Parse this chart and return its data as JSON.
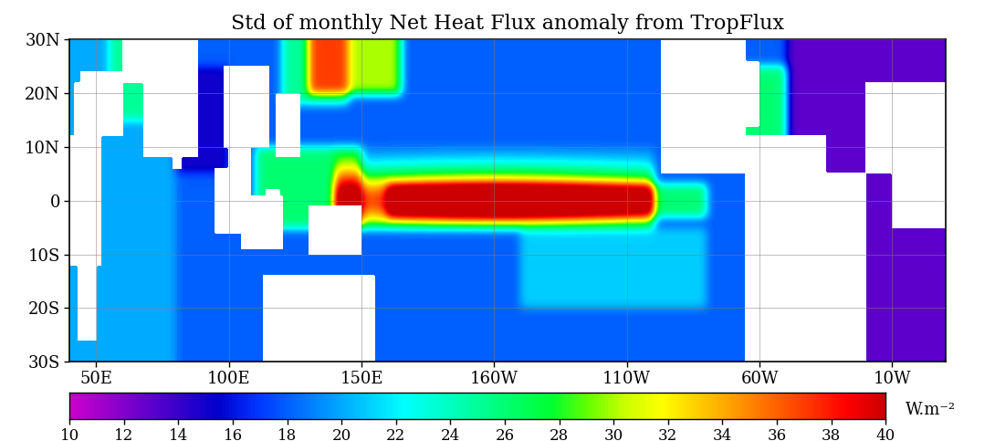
{
  "title": "Std of monthly Net Heat Flux anomaly from TropFlux",
  "lon_min": 40,
  "lon_max": 370,
  "lat_min": -30,
  "lat_max": 30,
  "vmin": 10,
  "vmax": 40,
  "colorbar_ticks": [
    10,
    12,
    14,
    16,
    18,
    20,
    22,
    24,
    26,
    28,
    30,
    32,
    34,
    36,
    38,
    40
  ],
  "colorbar_unit": "W.m⁻²",
  "xtick_labels": [
    "50E",
    "100E",
    "150E",
    "160W",
    "110W",
    "60W",
    "10W"
  ],
  "xtick_lons": [
    50,
    100,
    150,
    200,
    250,
    300,
    350
  ],
  "ytick_labels": [
    "30N",
    "20N",
    "10N",
    "0",
    "10S",
    "20S",
    "30S"
  ],
  "ytick_lats": [
    30,
    20,
    10,
    0,
    -10,
    -20,
    -30
  ],
  "figsize": [
    10.9,
    4.83
  ],
  "dpi": 100
}
